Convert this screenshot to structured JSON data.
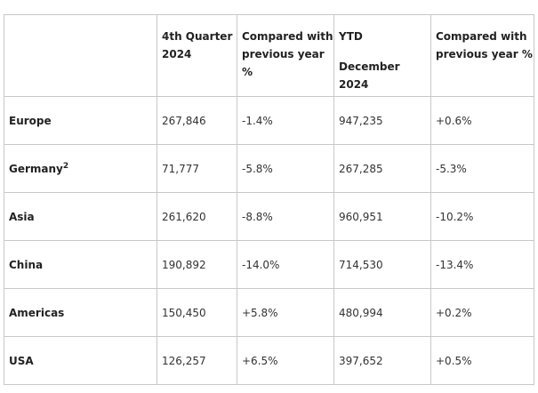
{
  "table": {
    "headers": [
      {
        "line1": "",
        "line2": ""
      },
      {
        "line1": "4th Quarter",
        "line2": "2024"
      },
      {
        "line1": "Compared with",
        "line2": "previous year %"
      },
      {
        "line1": "YTD",
        "line2": "December 2024"
      },
      {
        "line1": "Compared with",
        "line2": "previous year %"
      }
    ],
    "rows": [
      {
        "region": "Europe",
        "sup": "",
        "q4": "267,846",
        "q4_change": "-1.4%",
        "ytd": "947,235",
        "ytd_change": "+0.6%"
      },
      {
        "region": "Germany",
        "sup": "2",
        "q4": "71,777",
        "q4_change": "-5.8%",
        "ytd": "267,285",
        "ytd_change": "-5.3%"
      },
      {
        "region": "Asia",
        "sup": "",
        "q4": "261,620",
        "q4_change": "-8.8%",
        "ytd": "960,951",
        "ytd_change": "-10.2%"
      },
      {
        "region": "China",
        "sup": "",
        "q4": "190,892",
        "q4_change": "-14.0%",
        "ytd": "714,530",
        "ytd_change": "-13.4%"
      },
      {
        "region": "Americas",
        "sup": "",
        "q4": "150,450",
        "q4_change": "+5.8%",
        "ytd": "480,994",
        "ytd_change": "+0.2%"
      },
      {
        "region": "USA",
        "sup": "",
        "q4": "126,257",
        "q4_change": "+6.5%",
        "ytd": "397,652",
        "ytd_change": "+0.5%"
      }
    ]
  }
}
